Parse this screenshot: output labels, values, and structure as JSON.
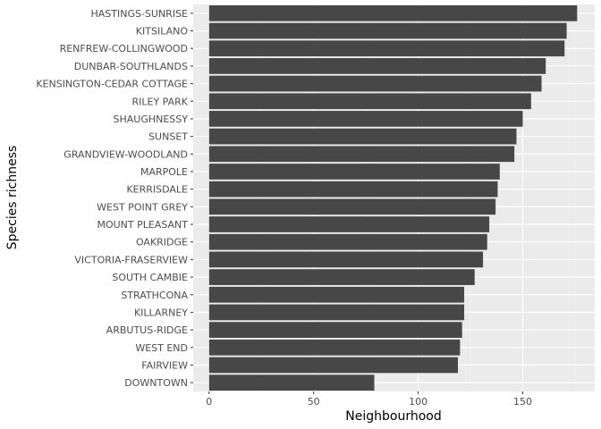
{
  "chart_data": {
    "type": "bar",
    "orientation": "horizontal",
    "categories": [
      "HASTINGS-SUNRISE",
      "KITSILANO",
      "RENFREW-COLLINGWOOD",
      "DUNBAR-SOUTHLANDS",
      "KENSINGTON-CEDAR COTTAGE",
      "RILEY PARK",
      "SHAUGHNESSY",
      "SUNSET",
      "GRANDVIEW-WOODLAND",
      "MARPOLE",
      "KERRISDALE",
      "WEST POINT GREY",
      "MOUNT PLEASANT",
      "OAKRIDGE",
      "VICTORIA-FRASERVIEW",
      "SOUTH CAMBIE",
      "STRATHCONA",
      "KILLARNEY",
      "ARBUTUS-RIDGE",
      "WEST END",
      "FAIRVIEW",
      "DOWNTOWN"
    ],
    "values": [
      176,
      171,
      170,
      161,
      159,
      154,
      150,
      147,
      146,
      139,
      138,
      137,
      134,
      133,
      131,
      127,
      122,
      122,
      121,
      120,
      119,
      79
    ],
    "xlabel": "Neighbourhood",
    "ylabel": "Species richness",
    "xlim": [
      0,
      185
    ],
    "xticks": [
      0,
      50,
      100,
      150
    ],
    "grid": true,
    "colors": {
      "bar": "#474747",
      "panel_background": "#ebebeb",
      "grid_major": "#ffffff",
      "text": "#4d4d4d",
      "tick": "#333333"
    }
  }
}
